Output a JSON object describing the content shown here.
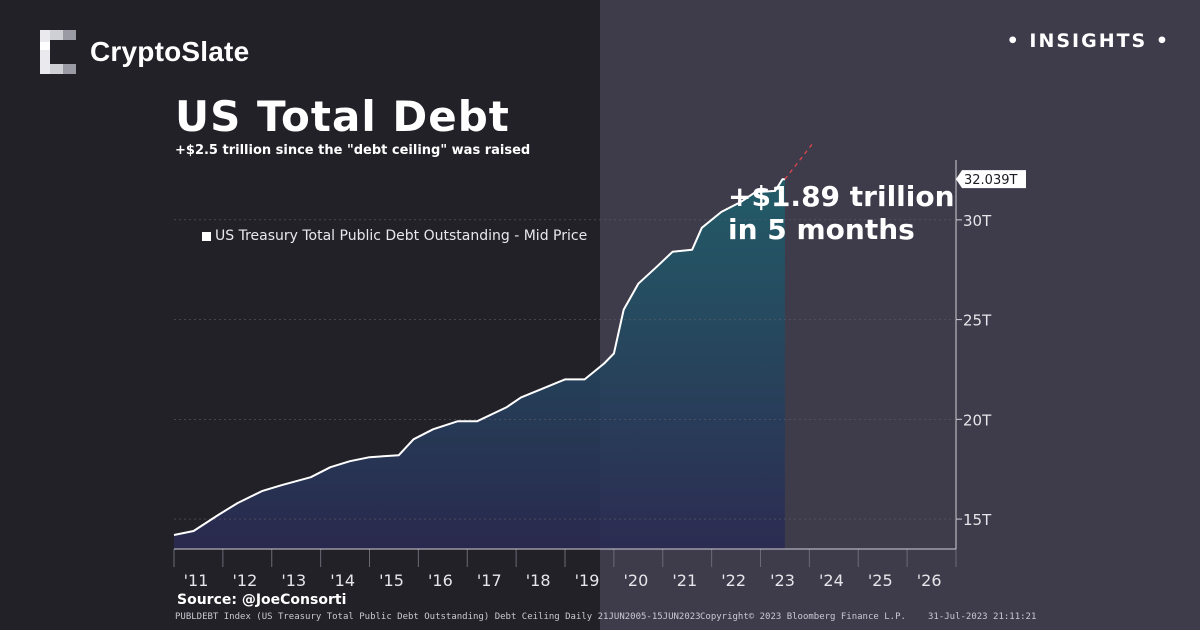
{
  "brand": {
    "name": "CryptoSlate",
    "logo_icon": "cryptoslate-logo-icon"
  },
  "badge": {
    "text": "• INSIGHTS •"
  },
  "chart_data": {
    "type": "line",
    "title": "US Total Debt",
    "subtitle": "+$2.5 trillion since the \"debt ceiling\" was raised",
    "series": [
      {
        "name": "US Treasury Total Public Debt Outstanding - Mid Price",
        "x": [
          2011.0,
          2011.4,
          2011.9,
          2012.3,
          2012.8,
          2013.2,
          2013.8,
          2014.2,
          2014.6,
          2015.0,
          2015.6,
          2015.9,
          2016.3,
          2016.8,
          2017.2,
          2017.8,
          2018.1,
          2018.5,
          2019.0,
          2019.4,
          2019.8,
          2020.0,
          2020.2,
          2020.5,
          2020.9,
          2021.2,
          2021.6,
          2021.8,
          2022.2,
          2022.6,
          2022.9,
          2023.0,
          2023.3,
          2023.45,
          2023.5
        ],
        "y": [
          14.2,
          14.4,
          15.2,
          15.8,
          16.4,
          16.7,
          17.1,
          17.6,
          17.9,
          18.1,
          18.2,
          19.0,
          19.5,
          19.9,
          19.9,
          20.6,
          21.1,
          21.5,
          22.0,
          22.0,
          22.8,
          23.3,
          25.5,
          26.8,
          27.7,
          28.4,
          28.5,
          29.6,
          30.4,
          30.9,
          31.4,
          31.4,
          31.45,
          32.039,
          32.039
        ]
      }
    ],
    "x_tick_labels": [
      "'11",
      "'12",
      "'13",
      "'14",
      "'15",
      "'16",
      "'17",
      "'18",
      "'19",
      "'20",
      "'21",
      "'22",
      "'23",
      "'24",
      "'25",
      "'26"
    ],
    "y_tick_labels": [
      "15T",
      "20T",
      "25T",
      "30T"
    ],
    "y_ticks": [
      15,
      20,
      25,
      30
    ],
    "xlim": [
      2011,
      2027
    ],
    "ylim": [
      13.5,
      33
    ],
    "last_value_label": "32.039T",
    "last_value": 32.039,
    "annotation": {
      "line1": "+$1.89 trillion",
      "line2": "in 5 months"
    },
    "grid": false,
    "legend_position": "top-left"
  },
  "source": "Source: @JoeConsorti",
  "footer": {
    "index_info": "PUBLDEBT Index (US Treasury Total Public Debt Outstanding) Debt Ceiling  Daily 21JUN2005-15JUN2023",
    "copyright": "Copyright© 2023 Bloomberg Finance L.P.",
    "timestamp": "31-Jul-2023 21:11:21"
  },
  "colors": {
    "background_left": "#232128",
    "background_right": "#3e3c4b",
    "line": "#ffffff",
    "area_top": "#1f5f6b",
    "area_bottom": "#2a2a52",
    "projection": "#e0454b"
  }
}
